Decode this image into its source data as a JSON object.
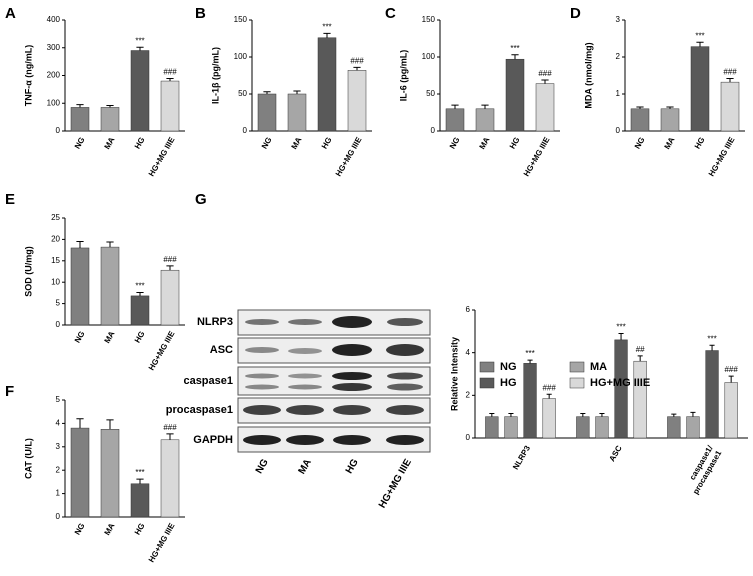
{
  "chart_data": [
    {
      "type": "bar",
      "panel": "A",
      "ylabel": "TNF-α (ng/mL)",
      "categories": [
        "NG",
        "MA",
        "HG",
        "HG+MG IIIE"
      ],
      "values": [
        85,
        85,
        290,
        180
      ],
      "errors": [
        10,
        7,
        12,
        9
      ],
      "annotations": [
        null,
        null,
        "***",
        "###"
      ],
      "colors": [
        "#808080",
        "#a6a6a6",
        "#595959",
        "#d9d9d9"
      ],
      "ylim": [
        0,
        400
      ],
      "yticks": [
        0,
        100,
        200,
        300,
        400
      ]
    },
    {
      "type": "bar",
      "panel": "B",
      "ylabel": "IL-1β (pg/mL)",
      "categories": [
        "NG",
        "MA",
        "HG",
        "HG+MG IIIE"
      ],
      "values": [
        50,
        50,
        126,
        82
      ],
      "errors": [
        3,
        4,
        6,
        4
      ],
      "annotations": [
        null,
        null,
        "***",
        "###"
      ],
      "colors": [
        "#808080",
        "#a6a6a6",
        "#595959",
        "#d9d9d9"
      ],
      "ylim": [
        0,
        150
      ],
      "yticks": [
        0,
        50,
        100,
        150
      ]
    },
    {
      "type": "bar",
      "panel": "C",
      "ylabel": "IL-6 (pg/mL)",
      "categories": [
        "NG",
        "MA",
        "HG",
        "HG+MG IIIE"
      ],
      "values": [
        30,
        30,
        97,
        64
      ],
      "errors": [
        5,
        5,
        6,
        5
      ],
      "annotations": [
        null,
        null,
        "***",
        "###"
      ],
      "colors": [
        "#808080",
        "#a6a6a6",
        "#595959",
        "#d9d9d9"
      ],
      "ylim": [
        0,
        150
      ],
      "yticks": [
        0,
        50,
        100,
        150
      ]
    },
    {
      "type": "bar",
      "panel": "D",
      "ylabel": "MDA (nmol/mg)",
      "categories": [
        "NG",
        "MA",
        "HG",
        "HG+MG IIIE"
      ],
      "values": [
        0.6,
        0.6,
        2.28,
        1.32
      ],
      "errors": [
        0.05,
        0.05,
        0.12,
        0.1
      ],
      "annotations": [
        null,
        null,
        "***",
        "###"
      ],
      "colors": [
        "#808080",
        "#a6a6a6",
        "#595959",
        "#d9d9d9"
      ],
      "ylim": [
        0,
        3
      ],
      "yticks": [
        0,
        1,
        2,
        3
      ]
    },
    {
      "type": "bar",
      "panel": "E",
      "ylabel": "SOD (U/mg)",
      "categories": [
        "NG",
        "MA",
        "HG",
        "HG+MG IIIE"
      ],
      "values": [
        18,
        18.2,
        6.8,
        12.8
      ],
      "errors": [
        1.5,
        1.2,
        0.8,
        1
      ],
      "annotations": [
        null,
        null,
        "***",
        "###"
      ],
      "colors": [
        "#808080",
        "#a6a6a6",
        "#595959",
        "#d9d9d9"
      ],
      "ylim": [
        0,
        25
      ],
      "yticks": [
        0,
        5,
        10,
        15,
        20,
        25
      ]
    },
    {
      "type": "bar",
      "panel": "F",
      "ylabel": "CAT (U/L)",
      "categories": [
        "NG",
        "MA",
        "HG",
        "HG+MG IIIE"
      ],
      "values": [
        3.8,
        3.75,
        1.42,
        3.3
      ],
      "errors": [
        0.4,
        0.4,
        0.2,
        0.25
      ],
      "annotations": [
        null,
        null,
        "***",
        "###"
      ],
      "colors": [
        "#808080",
        "#a6a6a6",
        "#595959",
        "#d9d9d9"
      ],
      "ylim": [
        0,
        5
      ],
      "yticks": [
        0,
        1,
        2,
        3,
        4,
        5
      ]
    },
    {
      "type": "grouped_bar",
      "panel": "G",
      "ylabel": "Relative Intensity",
      "categories": [
        "NLRP3",
        "ASC",
        "caspase1/\nprocaspase1"
      ],
      "ylim": [
        0,
        6
      ],
      "yticks": [
        0,
        2,
        4,
        6
      ],
      "series": [
        {
          "name": "NG",
          "color": "#808080",
          "values": [
            1,
            1,
            1
          ],
          "errors": [
            0.15,
            0.15,
            0.12
          ],
          "annotations": [
            null,
            null,
            null
          ]
        },
        {
          "name": "MA",
          "color": "#a6a6a6",
          "values": [
            1,
            1,
            1
          ],
          "errors": [
            0.15,
            0.15,
            0.2
          ],
          "annotations": [
            null,
            null,
            null
          ]
        },
        {
          "name": "HG",
          "color": "#595959",
          "values": [
            3.5,
            4.6,
            4.1
          ],
          "errors": [
            0.15,
            0.3,
            0.25
          ],
          "annotations": [
            "***",
            "***",
            "***"
          ]
        },
        {
          "name": "HG+MG IIIE",
          "color": "#d9d9d9",
          "values": [
            1.85,
            3.6,
            2.6
          ],
          "errors": [
            0.2,
            0.25,
            0.3
          ],
          "annotations": [
            "###",
            "##",
            "###"
          ]
        }
      ]
    }
  ],
  "blot": {
    "rows": [
      "NLRP3",
      "ASC",
      "caspase1",
      "procaspase1",
      "GAPDH"
    ],
    "lanes": [
      "NG",
      "MA",
      "HG",
      "HG+MG IIIE"
    ]
  }
}
